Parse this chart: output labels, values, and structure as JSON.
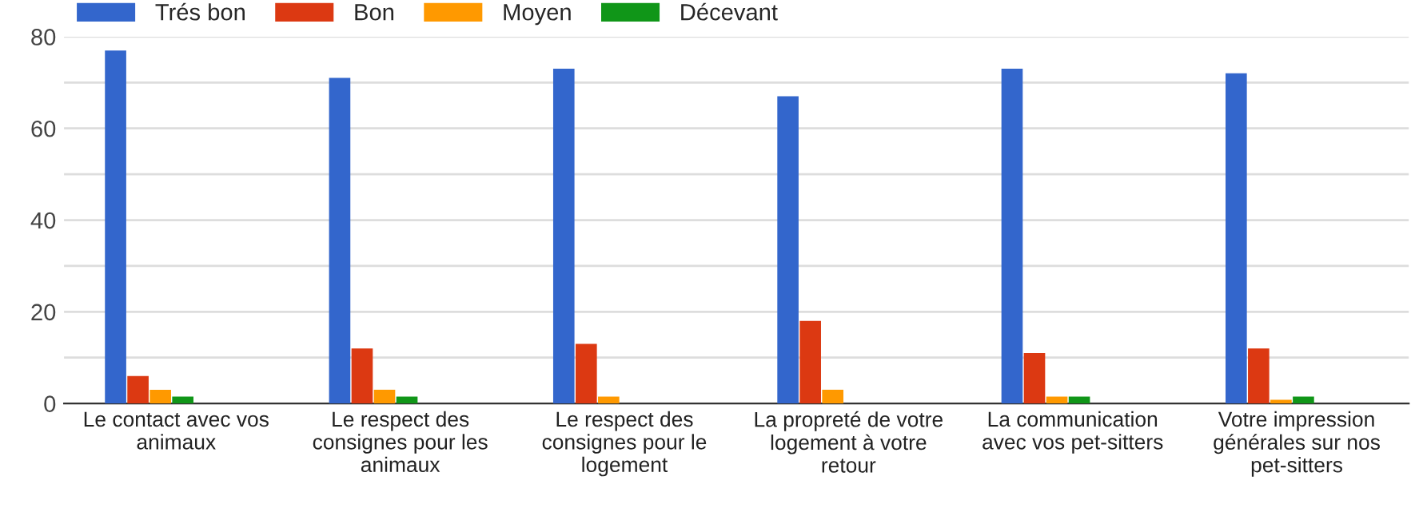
{
  "chart_data": {
    "type": "bar",
    "categories": [
      "Le contact avec vos animaux",
      "Le respect des consignes pour les animaux",
      "Le respect des consignes pour le logement",
      "La propreté de votre logement à votre retour",
      "La communication avec vos pet-sitters",
      "Votre impression générales sur nos pet-sitters"
    ],
    "series": [
      {
        "name": "Trés bon",
        "color": "#3366cc",
        "values": [
          77,
          71,
          73,
          67,
          73,
          72
        ]
      },
      {
        "name": "Bon",
        "color": "#dc3912",
        "values": [
          6,
          12,
          13,
          18,
          11,
          12
        ]
      },
      {
        "name": "Moyen",
        "color": "#ff9900",
        "values": [
          3,
          3,
          1.5,
          3,
          1.5,
          0.8
        ]
      },
      {
        "name": "Décevant",
        "color": "#109618",
        "values": [
          1.5,
          1.5,
          0,
          0,
          1.5,
          1.5
        ]
      }
    ],
    "ylim": [
      0,
      80
    ],
    "yticks": [
      0,
      {
        "value": 10,
        "label": null
      },
      20,
      {
        "value": 30,
        "label": null
      },
      40,
      {
        "value": 50,
        "label": null
      },
      60,
      {
        "value": 70,
        "label": null
      },
      80
    ],
    "grid": "y",
    "legend": "top left"
  }
}
